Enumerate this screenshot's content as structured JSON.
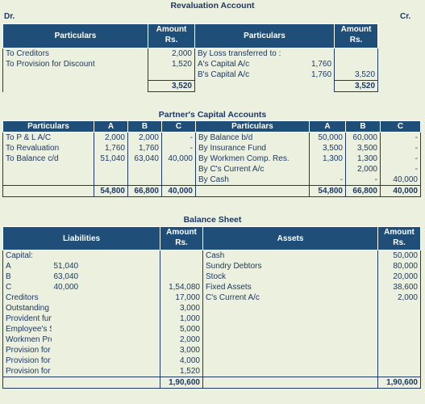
{
  "revaluation": {
    "title": "Revaluation Account",
    "dr": "Dr.",
    "cr": "Cr.",
    "headers": {
      "particulars_left": "Particulars",
      "amount_left": "Amount\nRs.",
      "particulars_right": "Particulars",
      "amount_right": "Amount\nRs."
    },
    "rows": [
      {
        "l": "To Creditors",
        "la": "2,000",
        "r": "By Loss transferred to :",
        "rm": "",
        "ra": ""
      },
      {
        "l": "To Provision for Discount",
        "la": "1,520",
        "r": "A's Capital A/c",
        "rm": "1,760",
        "ra": ""
      },
      {
        "l": "",
        "la": "",
        "r": "B's Capital A/c",
        "rm": "1,760",
        "ra": "3,520"
      }
    ],
    "total_left": "3,520",
    "total_right": "3,520"
  },
  "capital": {
    "title": "Partner's Capital Accounts",
    "headers": [
      "Particulars",
      "A",
      "B",
      "C",
      "Particulars",
      "A",
      "B",
      "C"
    ],
    "rows": [
      [
        "To P & L A/C",
        "2,000",
        "2,000",
        "-",
        "By Balance b/d",
        "50,000",
        "60,000",
        "-"
      ],
      [
        "To Revaluation",
        "1,760",
        "1,760",
        "-",
        "By Insurance Fund",
        "3,500",
        "3,500",
        "-"
      ],
      [
        "To Balance c/d",
        "51,040",
        "63,040",
        "40,000",
        "By Workmen Comp. Res.",
        "1,300",
        "1,300",
        "-"
      ],
      [
        "",
        "",
        "",
        "",
        "By C's Current A/c",
        "",
        "2,000",
        "-"
      ],
      [
        "",
        "",
        "",
        "",
        "By Cash",
        "-",
        "-",
        "40,000"
      ]
    ],
    "totals": [
      "",
      "54,800",
      "66,800",
      "40,000",
      "",
      "54,800",
      "66,800",
      "40,000"
    ]
  },
  "balance_sheet": {
    "title": "Balance Sheet",
    "headers": {
      "liabilities": "Liabilities",
      "amount_left": "Amount\nRs.",
      "assets": "Assets",
      "amount_right": "Amount\nRs."
    },
    "rows": [
      {
        "l": "Capital:",
        "lm": "",
        "la": "",
        "r": "Cash",
        "ra": "50,000"
      },
      {
        "l": "A",
        "lm": "51,040",
        "la": "",
        "r": "Sundry Debtors",
        "ra": "80,000"
      },
      {
        "l": "B",
        "lm": "63,040",
        "la": "",
        "r": "Stock",
        "ra": "20,000"
      },
      {
        "l": "C",
        "lm": "40,000",
        "la": "1,54,080",
        "r": "Fixed Assets",
        "ra": "38,600"
      },
      {
        "l": "Creditors",
        "lm": "",
        "la": "17,000",
        "r": "C's Current A/c",
        "ra": "2,000"
      },
      {
        "l": "Outstanding Expenses",
        "lm": "",
        "la": "3,000",
        "r": "",
        "ra": ""
      },
      {
        "l": "Provident fund",
        "lm": "",
        "la": "1,000",
        "r": "",
        "ra": ""
      },
      {
        "l": "Employee's Saving Fund",
        "lm": "",
        "la": "5,000",
        "r": "",
        "ra": ""
      },
      {
        "l": "Workmen Profit Sharing Fund",
        "lm": "",
        "la": "2,000",
        "r": "",
        "ra": ""
      },
      {
        "l": "Provision for Workmen Comp. claim",
        "lm": "",
        "la": "3,000",
        "r": "",
        "ra": ""
      },
      {
        "l": "Provision for Doubtful Debts",
        "lm": "",
        "la": "4,000",
        "r": "",
        "ra": ""
      },
      {
        "l": "Provision for Discount on Debtors",
        "lm": "",
        "la": "1,520",
        "r": "",
        "ra": ""
      }
    ],
    "total_left": "1,90,600",
    "total_right": "1,90,600"
  }
}
